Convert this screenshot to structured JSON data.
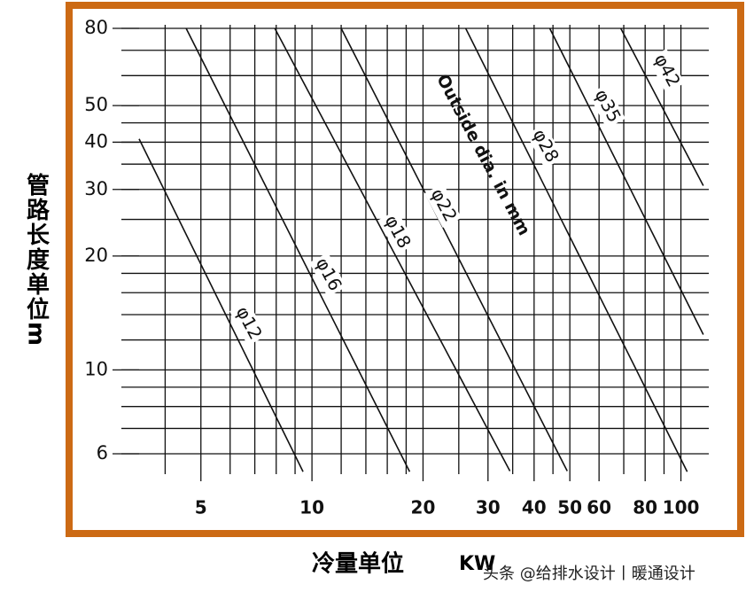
{
  "chart_data": {
    "type": "line",
    "x_label": "冷量单位",
    "x_unit": "KW",
    "y_label": "管路长度单位m",
    "annotation": "Outside dia. in mm",
    "watermark": "头条 @给排水设计丨暖通设计",
    "x_log": true,
    "y_log": true,
    "grid": true,
    "xlim": [
      3.4,
      119
    ],
    "ylim": [
      5.3,
      80
    ],
    "xticks": [
      5,
      10,
      20,
      30,
      40,
      50,
      60,
      80,
      100
    ],
    "yticks": [
      6,
      10,
      20,
      30,
      40,
      50,
      80
    ],
    "x_grid": [
      4,
      5,
      6,
      7,
      8,
      9,
      10,
      12,
      14,
      16,
      18,
      20,
      25,
      30,
      35,
      40,
      45,
      50,
      60,
      70,
      80,
      90,
      100
    ],
    "y_grid": [
      6,
      7,
      8,
      9,
      10,
      12,
      14,
      16,
      18,
      20,
      25,
      30,
      35,
      40,
      45,
      50,
      60,
      70,
      80
    ],
    "frame_color": "#cc6a14",
    "series": [
      {
        "name": "φ12",
        "color": "#111111",
        "x": [
          3.4,
          9.46
        ],
        "values": [
          40.8,
          5.38
        ]
      },
      {
        "name": "φ16",
        "color": "#111111",
        "x": [
          4.56,
          18.4
        ],
        "values": [
          80,
          5.38
        ]
      },
      {
        "name": "φ18",
        "color": "#111111",
        "x": [
          7.93,
          34.4
        ],
        "values": [
          80,
          5.4
        ]
      },
      {
        "name": "φ22",
        "color": "#111111",
        "x": [
          12.0,
          49.2
        ],
        "values": [
          80,
          5.4
        ]
      },
      {
        "name": "φ28",
        "color": "#111111",
        "x": [
          26.1,
          104
        ],
        "values": [
          80,
          5.38
        ]
      },
      {
        "name": "φ35",
        "color": "#111111",
        "x": [
          44.1,
          115
        ],
        "values": [
          80,
          12.4
        ]
      },
      {
        "name": "φ42",
        "color": "#111111",
        "x": [
          68.7,
          115
        ],
        "values": [
          80,
          30.7
        ]
      }
    ]
  }
}
